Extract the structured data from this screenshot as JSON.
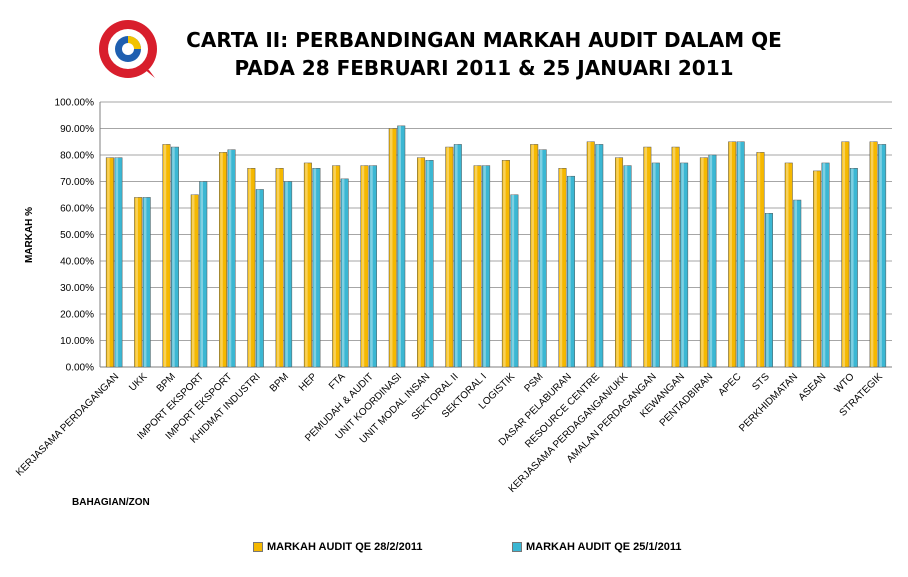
{
  "chart_data": {
    "type": "bar",
    "title_line1": "CARTA II: PERBANDINGAN MARKAH AUDIT DALAM QE",
    "title_line2": "PADA 28 FEBRUARI 2011 & 25 JANUARI 2011",
    "xlabel": "BAHAGIAN/ZON",
    "ylabel": "MARKAH %",
    "ylim": [
      0,
      100
    ],
    "yticks": [
      "0.00%",
      "10.00%",
      "20.00%",
      "30.00%",
      "40.00%",
      "50.00%",
      "60.00%",
      "70.00%",
      "80.00%",
      "90.00%",
      "100.00%"
    ],
    "grid": true,
    "legend_position": "bottom",
    "categories": [
      "KERJASAMA PERDAGANGAN",
      "UKK",
      "BPM",
      "IMPORT EKSPORT",
      "IMPORT EKSPORT",
      "KHIDMAT INDUSTRI",
      "BPM",
      "HEP",
      "FTA",
      "PEMUDAH & AUDIT",
      "UNIT KOORDINASI",
      "UNIT MODAL INSAN",
      "SEKTORAL II",
      "SEKTORAL I",
      "LOGISTIK",
      "PSM",
      "DASAR PELABURAN",
      "RESOURCE CENTRE",
      "KERJASAMA PERDAGANGAN/UKK",
      "AMALAN PERDAGANGAN",
      "KEWANGAN",
      "PENTADBIRAN",
      "APEC",
      "STS",
      "PERKHIDMATAN",
      "ASEAN",
      "WTO",
      "STRATEGIK"
    ],
    "series": [
      {
        "name": "MARKAH AUDIT QE 28/2/2011",
        "color": "#F5B800",
        "values": [
          79,
          64,
          84,
          65,
          81,
          75,
          75,
          77,
          76,
          76,
          90,
          79,
          83,
          76,
          78,
          84,
          75,
          85,
          79,
          83,
          83,
          79,
          85,
          81,
          77,
          74,
          85,
          85
        ]
      },
      {
        "name": "MARKAH AUDIT QE 25/1/2011",
        "color": "#3BB7D3",
        "values": [
          79,
          64,
          83,
          70,
          82,
          67,
          70,
          75,
          71,
          76,
          91,
          78,
          84,
          76,
          65,
          82,
          72,
          84,
          76,
          77,
          77,
          80,
          85,
          58,
          63,
          77,
          75,
          84
        ]
      }
    ]
  }
}
